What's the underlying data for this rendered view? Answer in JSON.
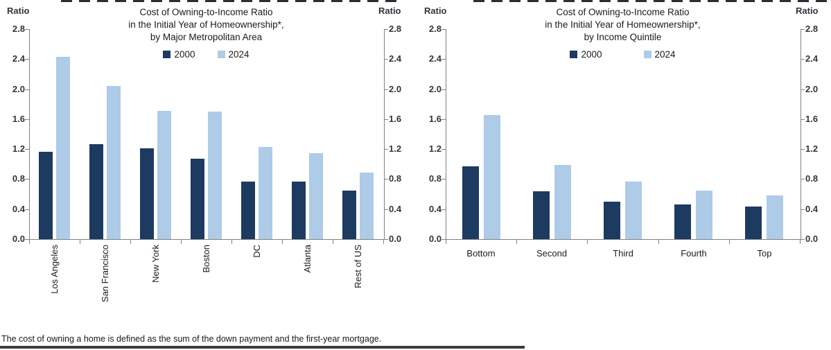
{
  "footnote": "The cost of owning a home is defined as the sum of the down payment and the first-year mortgage.",
  "colors": {
    "series_2000": "#1d3a61",
    "series_2024": "#aecbe8",
    "axis": "#808080"
  },
  "chart_data": [
    {
      "type": "bar",
      "title": "Cost of Owning-to-Income Ratio in the Initial Year of Homeownership*, by Major Metropolitan Area",
      "title_lines": [
        "Cost of Owning-to-Income Ratio",
        "in the Initial Year of Homeownership*,",
        "by Major Metropolitan Area"
      ],
      "ylabel_left": "Ratio",
      "ylabel_right": "Ratio",
      "ylim": [
        0.0,
        2.8
      ],
      "ytick_step": 0.4,
      "yticks": [
        "0.0",
        "0.4",
        "0.8",
        "1.2",
        "1.6",
        "2.0",
        "2.4",
        "2.8"
      ],
      "grid": false,
      "legend_position": "top-center",
      "categories": [
        "Los Angeles",
        "San Francisco",
        "New York",
        "Boston",
        "DC",
        "Atlanta",
        "Rest of US"
      ],
      "series": [
        {
          "name": "2000",
          "color": "#1d3a61",
          "values": [
            1.16,
            1.27,
            1.21,
            1.07,
            0.77,
            0.77,
            0.65
          ]
        },
        {
          "name": "2024",
          "color": "#aecbe8",
          "values": [
            2.43,
            2.04,
            1.71,
            1.7,
            1.23,
            1.15,
            0.89
          ]
        }
      ]
    },
    {
      "type": "bar",
      "title": "Cost of Owning-to-Income Ratio in the Initial Year of Homeownership*, by Income Quintile",
      "title_lines": [
        "Cost of Owning-to-Income Ratio",
        "in the Initial Year of Homeownership*,",
        "by Income Quintile"
      ],
      "ylabel_left": "Ratio",
      "ylabel_right": "Ratio",
      "ylim": [
        0.0,
        2.8
      ],
      "ytick_step": 0.4,
      "yticks": [
        "0.0",
        "0.4",
        "0.8",
        "1.2",
        "1.6",
        "2.0",
        "2.4",
        "2.8"
      ],
      "grid": false,
      "legend_position": "top-center",
      "categories": [
        "Bottom",
        "Second",
        "Third",
        "Fourth",
        "Top"
      ],
      "series": [
        {
          "name": "2000",
          "color": "#1d3a61",
          "values": [
            0.97,
            0.64,
            0.5,
            0.46,
            0.43
          ]
        },
        {
          "name": "2024",
          "color": "#aecbe8",
          "values": [
            1.65,
            0.99,
            0.77,
            0.65,
            0.58
          ]
        }
      ]
    }
  ]
}
